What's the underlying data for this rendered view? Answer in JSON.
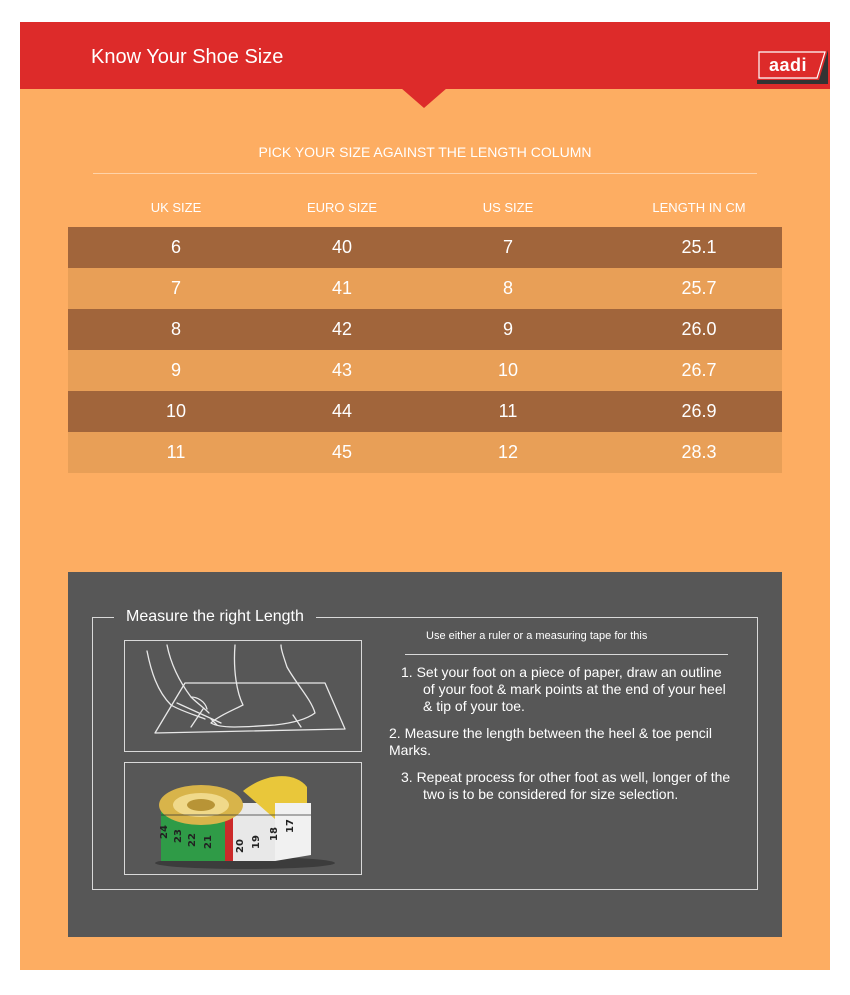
{
  "header": {
    "title": "Know Your Shoe Size",
    "logo_text": "aadi"
  },
  "size_chart": {
    "instruction": "PICK YOUR  SIZE AGAINST THE LENGTH COLUMN",
    "columns": [
      "UK SIZE",
      "EURO SIZE",
      "US SIZE",
      "LENGTH IN CM"
    ],
    "rows": [
      [
        "6",
        "40",
        "7",
        "25.1"
      ],
      [
        "7",
        "41",
        "8",
        "25.7"
      ],
      [
        "8",
        "42",
        "9",
        "26.0"
      ],
      [
        "9",
        "43",
        "10",
        "26.7"
      ],
      [
        "10",
        "44",
        "11",
        "26.9"
      ],
      [
        "11",
        "45",
        "12",
        "28.3"
      ]
    ]
  },
  "measure": {
    "title": "Measure the right Length",
    "hint": "Use either a ruler or a measuring tape for this",
    "steps": [
      "1.  Set your foot on a piece of paper, draw an outline of your foot & mark points at the end of your heel & tip of your toe.",
      "2.  Measure the length between the heel & toe          pencil Marks.",
      "3.  Repeat process for other foot as well, longer of the two is to be considered for size selection."
    ]
  },
  "tape_numbers": [
    "24",
    "23",
    "22",
    "21",
    "20",
    "19",
    "18",
    "17"
  ],
  "colors": {
    "header_red": "#dd2b2a",
    "panel_orange": "#fdad62",
    "row_dark": "#a1653b",
    "row_light": "#e89f57",
    "measure_grey": "#575757"
  },
  "icons": [
    "logo-badge",
    "foot-measuring-illustration",
    "measuring-tape-image"
  ]
}
